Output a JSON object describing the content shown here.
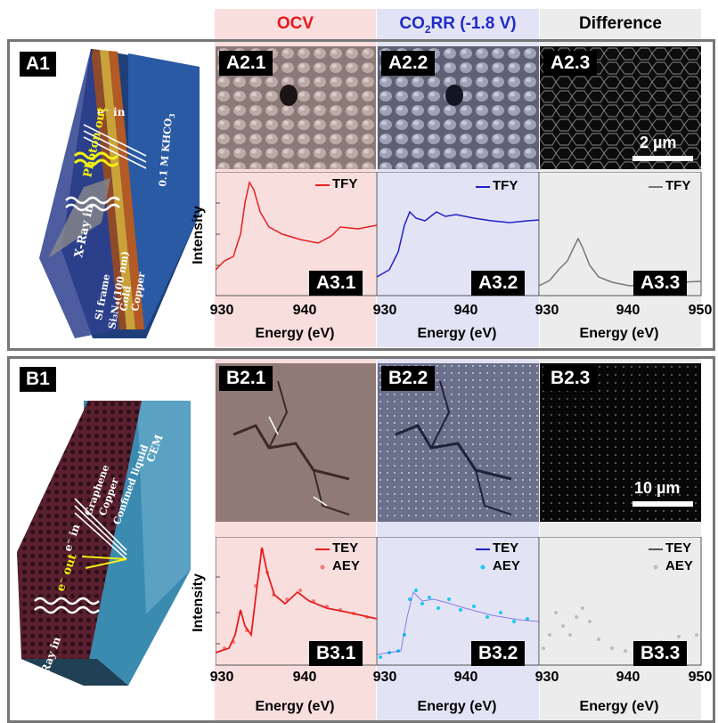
{
  "columns": {
    "ocv": "OCV",
    "co2rr_prefix": "CO",
    "co2rr_sub": "2",
    "co2rr_suffix": "RR (-1.8 V)",
    "difference": "Difference"
  },
  "panelA": {
    "main_label": "A1",
    "image_labels": [
      "A2.1",
      "A2.2",
      "A2.3"
    ],
    "plot_labels": [
      "A3.1",
      "A3.2",
      "A3.3"
    ],
    "scale": "2 µm",
    "legend": "TFY",
    "ylabel": "Intensity",
    "xlabel": "Energy (eV)",
    "ticks": [
      "930",
      "940",
      "930",
      "940",
      "930",
      "940",
      "950"
    ],
    "schematic": {
      "electrolyte": "0.1 M KHCO",
      "electrolyte_sub": "3",
      "e_in": "e⁻ in",
      "photon_out": "Photon out",
      "xray_in": "X-Ray in",
      "layers": [
        "Si frame",
        "Si₃N₄(100 nm)",
        "Gold",
        "Copper"
      ]
    }
  },
  "panelB": {
    "main_label": "B1",
    "image_labels": [
      "B2.1",
      "B2.2",
      "B2.3"
    ],
    "plot_labels": [
      "B3.1",
      "B3.2",
      "B3.3"
    ],
    "scale": "10 µm",
    "legend_line": "TEY",
    "legend_dots": "AEY",
    "ylabel": "Intensity",
    "xlabel": "Energy (eV)",
    "ticks": [
      "930",
      "940",
      "930",
      "940",
      "930",
      "940",
      "950"
    ],
    "schematic": {
      "cem": "CEM",
      "layers": [
        "Graphene",
        "Copper",
        "Confined liquid"
      ],
      "e_in": "e⁻ in",
      "e_out": "e⁻ out",
      "xray_in": "X-Ray in"
    }
  },
  "colors": {
    "ocv_bg": "#f9dede",
    "co2rr_bg": "#e3e3f6",
    "diff_bg": "#ececec",
    "ocv_text": "#e8191c",
    "co2rr_text": "#1f2bc8",
    "tfy_ocv": "#e81e1e",
    "tfy_co2rr": "#1f22c8",
    "tfy_diff": "#777777",
    "aey_co2rr": "#1ec8f0",
    "aey_ocv": "#f07a78",
    "aey_diff": "#bdbdbd"
  }
}
